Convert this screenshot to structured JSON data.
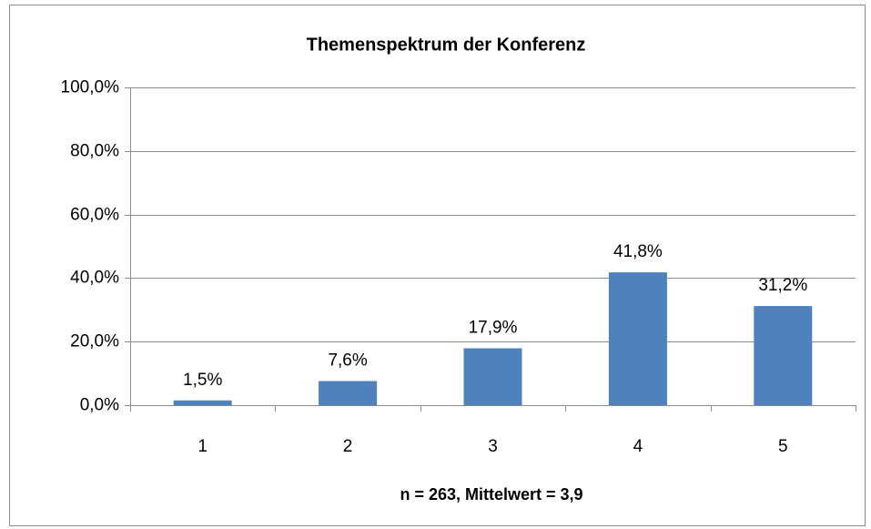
{
  "chart_data": {
    "type": "bar",
    "title": "Themenspektrum der Konferenz",
    "x_label": "n = 263, Mittelwert = 3,9",
    "categories": [
      "1",
      "2",
      "3",
      "4",
      "5"
    ],
    "values": [
      1.5,
      7.6,
      17.9,
      41.8,
      31.2
    ],
    "value_labels": [
      "1,5%",
      "7,6%",
      "17,9%",
      "41,8%",
      "31,2%"
    ],
    "color": "#4f81bd",
    "ylim": [
      0,
      100
    ],
    "yticks": [
      {
        "value": 0,
        "label": "0,0%"
      },
      {
        "value": 20,
        "label": "20,0%"
      },
      {
        "value": 40,
        "label": "40,0%"
      },
      {
        "value": 60,
        "label": "60,0%"
      },
      {
        "value": 80,
        "label": "80,0%"
      },
      {
        "value": 100,
        "label": "100,0%"
      }
    ],
    "grid": true
  }
}
